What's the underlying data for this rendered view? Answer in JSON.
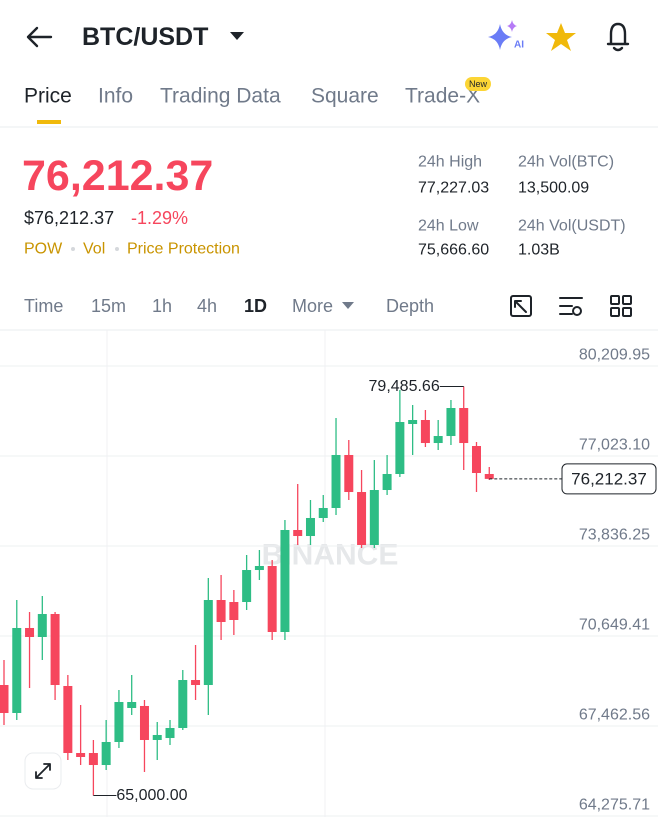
{
  "header": {
    "pair": "BTC/USDT"
  },
  "tabs": {
    "items": [
      "Price",
      "Info",
      "Trading Data",
      "Square",
      "Trade-X"
    ],
    "badge": "New"
  },
  "price": {
    "last": "76,212.37",
    "usd": "$76,212.37",
    "change": "-1.29%",
    "tags": [
      "POW",
      "Vol",
      "Price Protection"
    ]
  },
  "stats": [
    {
      "label": "24h High",
      "value": "77,227.03"
    },
    {
      "label": "24h Vol(BTC)",
      "value": "13,500.09"
    },
    {
      "label": "24h Low",
      "value": "75,666.60"
    },
    {
      "label": "24h Vol(USDT)",
      "value": "1.03B"
    }
  ],
  "intervals": [
    "Time",
    "15m",
    "1h",
    "4h",
    "1D",
    "More",
    "Depth"
  ],
  "chart_data": {
    "type": "candlestick",
    "watermark": "BINANCE",
    "up_color": "#2ebd85",
    "down_color": "#f6465d",
    "grid": true,
    "ylim": [
      64240,
      81485
    ],
    "yticks": [
      {
        "value": 80209.95,
        "label": "80,209.95"
      },
      {
        "value": 77023.1,
        "label": "77,023.10"
      },
      {
        "value": 73836.25,
        "label": "73,836.25"
      },
      {
        "value": 70649.41,
        "label": "70,649.41"
      },
      {
        "value": 67462.56,
        "label": "67,462.56"
      },
      {
        "value": 64275.71,
        "label": "64,275.71"
      }
    ],
    "open": [
      68914,
      67923,
      70933,
      70614,
      71428,
      68879,
      66506,
      66506,
      66081,
      66896,
      68100,
      68171,
      66967,
      67037,
      67392,
      69091,
      68914,
      71924,
      71853,
      71853,
      72986,
      73128,
      70791,
      74403,
      74190,
      74828,
      75182,
      77059,
      75748,
      73872,
      75819,
      76386,
      78156,
      78298,
      77483,
      77731,
      78723,
      77377,
      76386
    ],
    "high": [
      69799,
      71924,
      71499,
      72066,
      71499,
      69268,
      68206,
      66967,
      67675,
      68737,
      69268,
      68383,
      67604,
      67675,
      69445,
      70331,
      72703,
      72809,
      72278,
      73518,
      73695,
      73340,
      74757,
      76032,
      75465,
      75642,
      78369,
      77590,
      76527,
      76881,
      77059,
      79360,
      78829,
      78652,
      78298,
      79006,
      79485.66,
      77519,
      76634
    ],
    "low": [
      67498,
      67675,
      68808,
      69799,
      68383,
      66258,
      66081,
      65000,
      65904,
      66683,
      67852,
      65834,
      66258,
      66790,
      67321,
      68383,
      67852,
      70508,
      70685,
      71570,
      72632,
      70508,
      70508,
      73872,
      73872,
      74686,
      74934,
      75465,
      73765,
      73765,
      75642,
      76279,
      77059,
      77342,
      77236,
      77413,
      76527,
      75748,
      76173
    ],
    "close": [
      67923,
      70933,
      70614,
      71428,
      68914,
      66506,
      66365,
      66081,
      66896,
      68312,
      68312,
      66967,
      67144,
      67392,
      69091,
      68914,
      71924,
      71145,
      71216,
      72986,
      73128,
      70791,
      74403,
      74190,
      74828,
      75182,
      77059,
      75748,
      73872,
      75819,
      76386,
      78227,
      78298,
      77483,
      77731,
      78723,
      77483,
      76421,
      76212.37
    ],
    "high_marker": {
      "value": 79485.66,
      "label": "79,485.66"
    },
    "low_marker": {
      "value": 65000,
      "label": "65,000.00"
    },
    "last_price": {
      "value": 76212.37,
      "label": "76,212.37"
    }
  }
}
